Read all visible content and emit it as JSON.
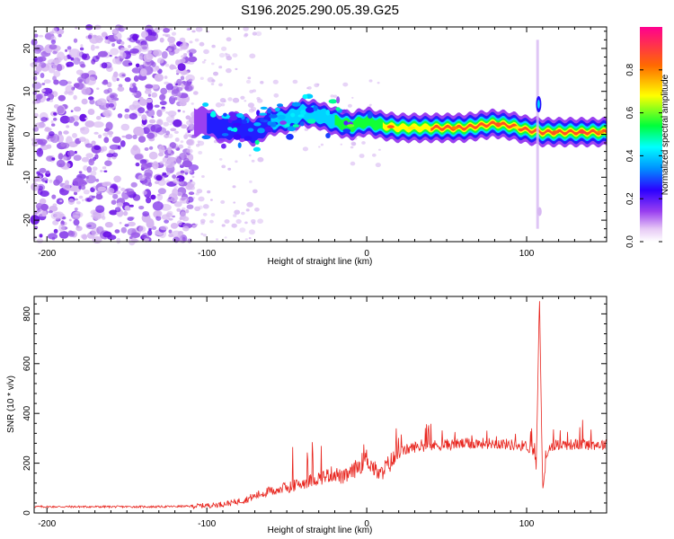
{
  "title": "S196.2025.290.05.39.G25",
  "colors": {
    "background": "#ffffff",
    "axis": "#000000",
    "snr_line": "#e8261f",
    "spec_light": "#d7b8f2",
    "spec_mid": "#9b5be8",
    "spec_dark": "#6a11e6"
  },
  "chart_data": [
    {
      "id": "spectrogram",
      "type": "heatmap",
      "xlabel": "Height of straight line (km)",
      "ylabel": "Frequency (Hz)",
      "xlim": [
        -208,
        150
      ],
      "ylim": [
        -25,
        25
      ],
      "xticks": [
        -200,
        -100,
        0,
        100
      ],
      "yticks": [
        -20,
        -10,
        0,
        10,
        20
      ],
      "ridge_center_hz": [
        [
          -100,
          3
        ],
        [
          -90,
          1
        ],
        [
          -80,
          2
        ],
        [
          -70,
          0.5
        ],
        [
          -60,
          3
        ],
        [
          -50,
          3.5
        ],
        [
          -40,
          5
        ],
        [
          -30,
          4.5
        ],
        [
          -20,
          3
        ],
        [
          -10,
          2
        ],
        [
          0,
          3
        ],
        [
          10,
          2
        ],
        [
          20,
          1.5
        ],
        [
          40,
          1.5
        ],
        [
          60,
          1.5
        ],
        [
          80,
          2.5
        ],
        [
          90,
          2
        ],
        [
          100,
          1
        ],
        [
          110,
          0.5
        ],
        [
          130,
          0.5
        ],
        [
          150,
          0.5
        ]
      ],
      "colorbar": {
        "label": "Normalized spectral amplitude",
        "range": [
          0,
          1
        ],
        "ticks": [
          "0.0",
          "0.2",
          "0.4",
          "0.6",
          "0.8"
        ],
        "tick_values": [
          0.0,
          0.2,
          0.4,
          0.6,
          0.8
        ],
        "colormap_stops": [
          {
            "v": 0.0,
            "color": "#ffffff"
          },
          {
            "v": 0.06,
            "color": "#e6c8f5"
          },
          {
            "v": 0.14,
            "color": "#9a40f0"
          },
          {
            "v": 0.24,
            "color": "#2c00ff"
          },
          {
            "v": 0.34,
            "color": "#0090ff"
          },
          {
            "v": 0.44,
            "color": "#00ffff"
          },
          {
            "v": 0.54,
            "color": "#00ff3a"
          },
          {
            "v": 0.68,
            "color": "#ffff00"
          },
          {
            "v": 0.82,
            "color": "#ff6a00"
          },
          {
            "v": 1.0,
            "color": "#ff0090"
          }
        ]
      }
    },
    {
      "id": "snr",
      "type": "line",
      "xlabel": "Height of straight line (km)",
      "ylabel": "SNR (10 * v/v)",
      "xlim": [
        -208,
        150
      ],
      "ylim": [
        0,
        870
      ],
      "xticks": [
        -200,
        -100,
        0,
        100
      ],
      "yticks": [
        0,
        200,
        400,
        600,
        800
      ],
      "series": [
        {
          "name": "SNR",
          "x": [
            -208,
            -190,
            -170,
            -150,
            -130,
            -110,
            -95,
            -85,
            -75,
            -65,
            -55,
            -45,
            -35,
            -25,
            -20,
            -15,
            -10,
            -5,
            0,
            5,
            8,
            12,
            16,
            20,
            25,
            30,
            40,
            50,
            60,
            70,
            80,
            90,
            95,
            100,
            104,
            106,
            108,
            110,
            112,
            115,
            120,
            130,
            140,
            150
          ],
          "y": [
            25,
            25,
            25,
            25,
            25,
            27,
            32,
            40,
            55,
            80,
            95,
            110,
            130,
            150,
            160,
            140,
            160,
            190,
            220,
            175,
            150,
            185,
            210,
            240,
            255,
            265,
            270,
            275,
            278,
            280,
            280,
            275,
            270,
            270,
            250,
            180,
            870,
            100,
            200,
            270,
            275,
            275,
            275,
            275
          ]
        }
      ]
    }
  ]
}
